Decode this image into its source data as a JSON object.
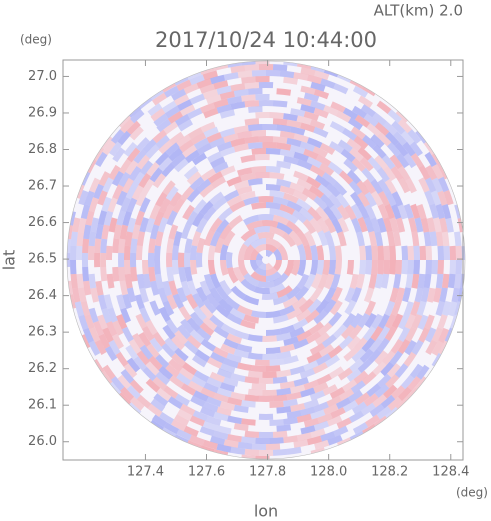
{
  "chart_data": {
    "type": "radar-image",
    "title": "2017/10/24 10:44:00",
    "subtitle": "ALT(km) 2.0",
    "x_label": "lon",
    "y_label": "lat",
    "x_unit": "(deg)",
    "y_unit": "(deg)",
    "xlim": [
      127.13,
      128.44
    ],
    "ylim": [
      25.95,
      27.045
    ],
    "xticks": [
      127.4,
      127.6,
      127.8,
      {
        "value": 128,
        "label": "128.0"
      },
      128.2,
      128.4
    ],
    "yticks": [
      {
        "value": 26,
        "label": "26.0"
      },
      26.1,
      26.2,
      26.3,
      26.4,
      26.5,
      26.6,
      26.7,
      26.8,
      26.9,
      {
        "value": 27,
        "label": "27.0"
      }
    ]
  }
}
